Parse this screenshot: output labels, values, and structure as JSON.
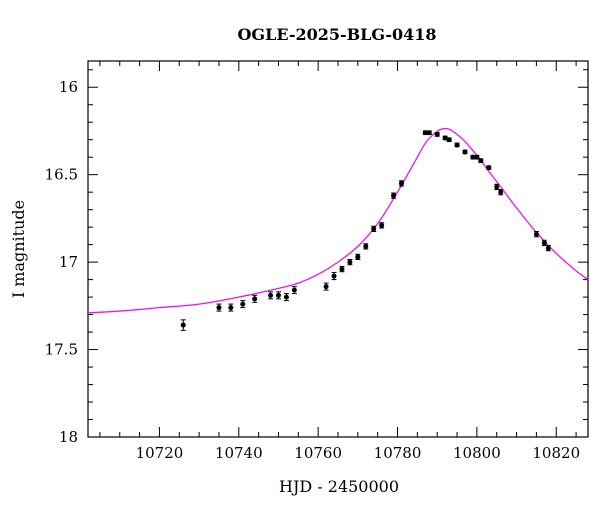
{
  "chart_data": {
    "type": "scatter",
    "title": "OGLE-2025-BLG-0418",
    "xlabel": "HJD - 2450000",
    "ylabel": "I magnitude",
    "xlim": [
      10702,
      10828
    ],
    "ylim": [
      18,
      15.85
    ],
    "y_inverted": true,
    "x_ticks": [
      10720,
      10740,
      10760,
      10780,
      10800,
      10820
    ],
    "x_tick_labels": [
      "10720",
      "10740",
      "10760",
      "10780",
      "10800",
      "10820"
    ],
    "y_ticks": [
      16,
      16.5,
      17,
      17.5,
      18
    ],
    "y_tick_labels": [
      "16",
      "16.5",
      "17",
      "17.5",
      "18"
    ],
    "grid": false,
    "legend": "none",
    "colors": {
      "model": "#e815e8",
      "points": "#000000"
    },
    "series": [
      {
        "kind": "points",
        "x": [
          10726,
          10735,
          10738,
          10741,
          10744,
          10748,
          10750,
          10752,
          10754,
          10762,
          10764,
          10766,
          10768,
          10770,
          10772,
          10774,
          10776,
          10779,
          10781,
          10787,
          10788,
          10790,
          10792,
          10793,
          10795,
          10797,
          10799,
          10800,
          10801,
          10803,
          10805,
          10806,
          10815,
          10817,
          10818
        ],
        "y": [
          17.36,
          17.26,
          17.26,
          17.24,
          17.21,
          17.19,
          17.19,
          17.2,
          17.16,
          17.14,
          17.08,
          17.04,
          17.0,
          16.97,
          16.91,
          16.81,
          16.79,
          16.62,
          16.55,
          16.26,
          16.26,
          16.27,
          16.29,
          16.3,
          16.33,
          16.37,
          16.4,
          16.4,
          16.42,
          16.46,
          16.57,
          16.6,
          16.84,
          16.89,
          16.92
        ],
        "yerr": [
          0.03,
          0.02,
          0.02,
          0.02,
          0.02,
          0.02,
          0.02,
          0.02,
          0.02,
          0.02,
          0.02,
          0.015,
          0.015,
          0.015,
          0.015,
          0.015,
          0.015,
          0.015,
          0.015,
          0.01,
          0.01,
          0.01,
          0.01,
          0.01,
          0.01,
          0.01,
          0.01,
          0.01,
          0.01,
          0.01,
          0.015,
          0.015,
          0.015,
          0.015,
          0.015
        ]
      },
      {
        "kind": "model",
        "x": [
          10702,
          10710,
          10720,
          10730,
          10740,
          10750,
          10755,
          10760,
          10765,
          10770,
          10775,
          10780,
          10784,
          10787,
          10789,
          10791,
          10793,
          10795,
          10797,
          10800,
          10803,
          10806,
          10810,
          10815,
          10820,
          10825,
          10828
        ],
        "y": [
          17.29,
          17.28,
          17.26,
          17.24,
          17.2,
          17.15,
          17.12,
          17.07,
          17.0,
          16.91,
          16.78,
          16.6,
          16.44,
          16.32,
          16.27,
          16.24,
          16.24,
          16.27,
          16.31,
          16.39,
          16.48,
          16.57,
          16.69,
          16.83,
          16.95,
          17.05,
          17.1
        ]
      }
    ]
  }
}
